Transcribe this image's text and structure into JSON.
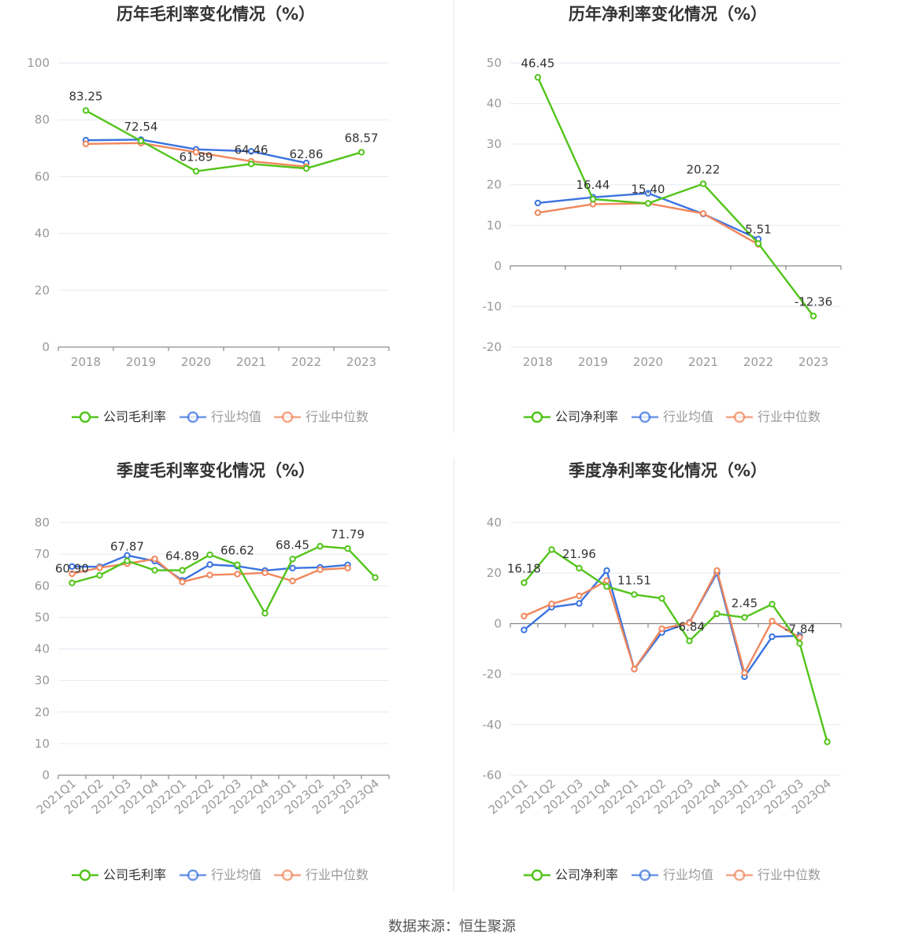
{
  "source_text": "数据来源：恒生聚源",
  "colors": {
    "company": "#52c41a",
    "avg": "#3b73e0",
    "median": "#f0875c",
    "grid": "#e6e9f5",
    "axis": "#6e7079",
    "label": "#333333",
    "tick": "#999999"
  },
  "chart_data": [
    {
      "type": "line",
      "title": "历年毛利率变化情况（%）",
      "categories": [
        "2018",
        "2019",
        "2020",
        "2021",
        "2022",
        "2023"
      ],
      "ylim": [
        0,
        100
      ],
      "yticks": [
        0,
        20,
        40,
        60,
        80,
        100
      ],
      "xlabel_rotate": false,
      "series": [
        {
          "name": "公司毛利率",
          "values": [
            83.25,
            72.54,
            61.89,
            64.46,
            62.86,
            68.57
          ]
        },
        {
          "name": "行业均值",
          "values": [
            72.8,
            73.0,
            69.6,
            68.9,
            64.8,
            null
          ]
        },
        {
          "name": "行业中位数",
          "values": [
            71.5,
            71.8,
            68.6,
            65.4,
            63.5,
            null
          ]
        }
      ],
      "data_labels": [
        "83.25",
        "72.54",
        "61.89",
        "64.46",
        "62.86",
        "68.57"
      ]
    },
    {
      "type": "line",
      "title": "历年净利率变化情况（%）",
      "categories": [
        "2018",
        "2019",
        "2020",
        "2021",
        "2022",
        "2023"
      ],
      "ylim": [
        -20,
        50
      ],
      "yticks": [
        -20,
        -10,
        0,
        10,
        20,
        30,
        40,
        50
      ],
      "xlabel_rotate": false,
      "series": [
        {
          "name": "公司净利率",
          "values": [
            46.45,
            16.44,
            15.4,
            20.22,
            5.51,
            -12.36
          ]
        },
        {
          "name": "行业均值",
          "values": [
            15.5,
            16.9,
            17.9,
            12.8,
            6.6,
            null
          ]
        },
        {
          "name": "行业中位数",
          "values": [
            13.1,
            15.2,
            15.4,
            12.9,
            5.3,
            null
          ]
        }
      ],
      "data_labels": [
        "46.45",
        "16.44",
        "15.40",
        "20.22",
        "5.51",
        "-12.36"
      ]
    },
    {
      "type": "line",
      "title": "季度毛利率变化情况（%）",
      "categories": [
        "2021Q1",
        "2021Q2",
        "2021Q3",
        "2021Q4",
        "2022Q1",
        "2022Q2",
        "2022Q3",
        "2022Q4",
        "2023Q1",
        "2023Q2",
        "2023Q3",
        "2023Q4"
      ],
      "ylim": [
        0,
        80
      ],
      "yticks": [
        0,
        10,
        20,
        30,
        40,
        50,
        60,
        70,
        80
      ],
      "xlabel_rotate": true,
      "series": [
        {
          "name": "公司毛利率",
          "values": [
            60.9,
            63.3,
            67.87,
            64.9,
            64.89,
            69.8,
            66.62,
            51.3,
            68.45,
            72.5,
            71.79,
            62.6
          ]
        },
        {
          "name": "行业均值",
          "values": [
            66.1,
            66.0,
            69.6,
            67.8,
            61.7,
            66.7,
            66.2,
            64.8,
            65.6,
            65.8,
            66.6,
            null
          ]
        },
        {
          "name": "行业中位数",
          "values": [
            63.8,
            65.7,
            67.0,
            68.5,
            61.2,
            63.4,
            63.7,
            64.1,
            61.5,
            65.1,
            65.6,
            null
          ]
        }
      ],
      "data_labels": [
        "60.90",
        "",
        "67.87",
        "",
        "64.89",
        "",
        "66.62",
        "",
        "68.45",
        "",
        "71.79",
        ""
      ]
    },
    {
      "type": "line",
      "title": "季度净利率变化情况（%）",
      "categories": [
        "2021Q1",
        "2021Q2",
        "2021Q3",
        "2021Q4",
        "2022Q1",
        "2022Q2",
        "2022Q3",
        "2022Q4",
        "2023Q1",
        "2023Q2",
        "2023Q3",
        "2023Q4"
      ],
      "ylim": [
        -60,
        40
      ],
      "yticks": [
        -60,
        -40,
        -20,
        0,
        20,
        40
      ],
      "xlabel_rotate": true,
      "series": [
        {
          "name": "公司净利率",
          "values": [
            16.18,
            29.3,
            21.96,
            14.7,
            11.51,
            10.0,
            -6.84,
            3.9,
            2.45,
            7.7,
            -7.84,
            -46.8
          ]
        },
        {
          "name": "行业均值",
          "values": [
            -2.5,
            6.5,
            8.0,
            21.0,
            -18.0,
            -3.5,
            0.5,
            20.0,
            -21.0,
            -5.2,
            -4.8,
            null
          ]
        },
        {
          "name": "行业中位数",
          "values": [
            3.0,
            7.8,
            11.0,
            17.0,
            -18.0,
            -2.0,
            0.3,
            21.0,
            -19.5,
            1.0,
            -5.5,
            null
          ]
        }
      ],
      "data_labels": [
        "16.18",
        "",
        "21.96",
        "",
        "11.51",
        "",
        "-6.84",
        "",
        "2.45",
        "",
        "-7.84",
        ""
      ]
    }
  ]
}
